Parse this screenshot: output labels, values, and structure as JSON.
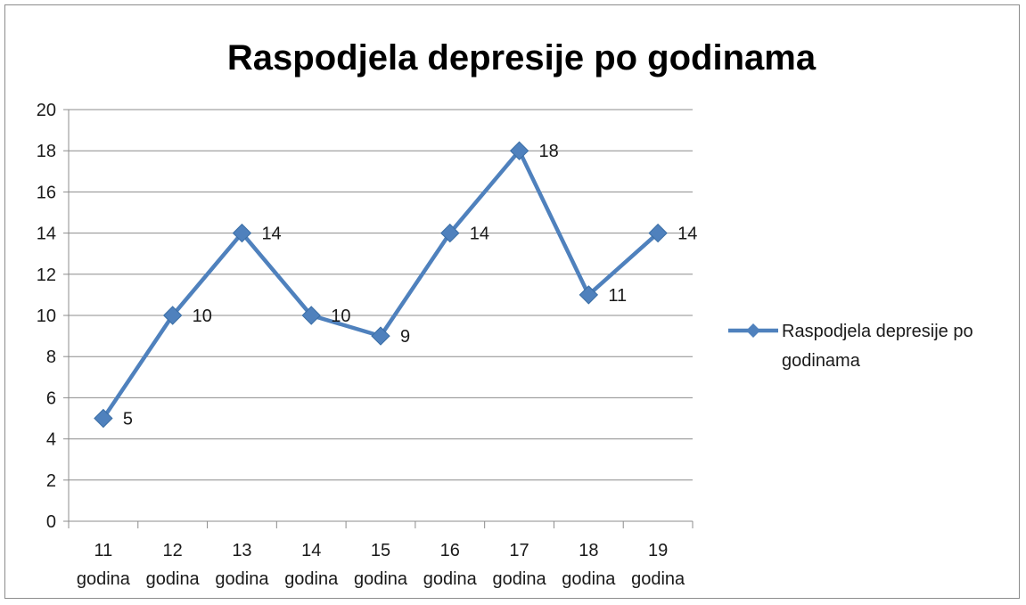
{
  "chart_data": {
    "type": "line",
    "title": "Raspodjela depresije po godinama",
    "categories": [
      [
        "11",
        "godina"
      ],
      [
        "12",
        "godina"
      ],
      [
        "13",
        "godina"
      ],
      [
        "14",
        "godina"
      ],
      [
        "15",
        "godina"
      ],
      [
        "16",
        "godina"
      ],
      [
        "17",
        "godina"
      ],
      [
        "18",
        "godina"
      ],
      [
        "19",
        "godina"
      ]
    ],
    "series": [
      {
        "name": "Raspodjela depresije po godinama",
        "values": [
          5,
          10,
          14,
          10,
          9,
          14,
          18,
          11,
          14
        ]
      }
    ],
    "legend_lines": [
      "Raspodjela depresije po",
      "godinama"
    ],
    "ylim": [
      0,
      20
    ],
    "yticks": [
      0,
      2,
      4,
      6,
      8,
      10,
      12,
      14,
      16,
      18,
      20
    ],
    "grid": true,
    "legend": "right",
    "marker": "diamond",
    "data_labels": true,
    "colors": {
      "series": "#4F81BD",
      "grid": "#8c8c8c",
      "axis": "#8c8c8c"
    }
  }
}
